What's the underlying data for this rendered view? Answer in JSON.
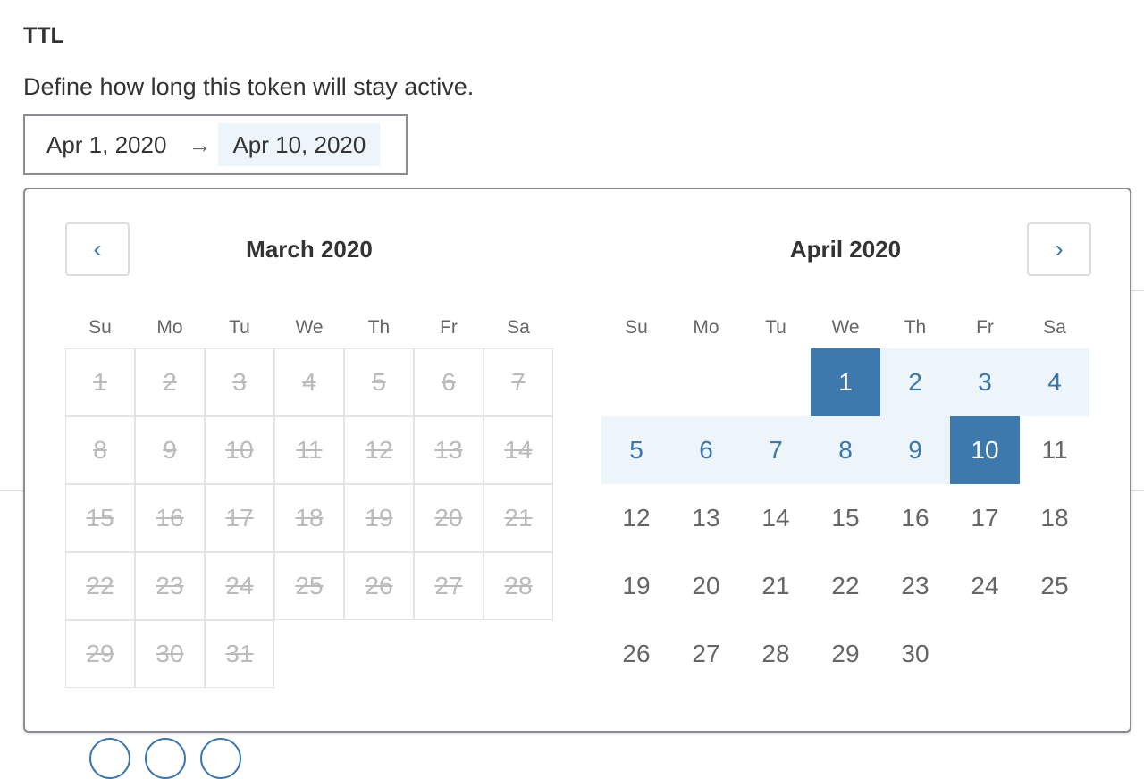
{
  "ttl": {
    "title": "TTL",
    "description": "Define how long this token will stay active.",
    "start_date": "Apr 1, 2020",
    "arrow": "→",
    "end_date": "Apr 10, 2020"
  },
  "calendar": {
    "prev_icon": "chevron-left-icon",
    "next_icon": "chevron-right-icon",
    "prev_label": "‹",
    "next_label": "›",
    "weekdays": [
      "Su",
      "Mo",
      "Tu",
      "We",
      "Th",
      "Fr",
      "Sa"
    ],
    "left": {
      "title": "March 2020",
      "first_weekday": 0,
      "days": 31,
      "disabled": true
    },
    "right": {
      "title": "April 2020",
      "first_weekday": 3,
      "days": 30,
      "range_start": 1,
      "range_end": 10
    },
    "colors": {
      "selected": "#3e79ad",
      "in_range": "#edf4fa",
      "accent": "#3b77ad"
    }
  }
}
